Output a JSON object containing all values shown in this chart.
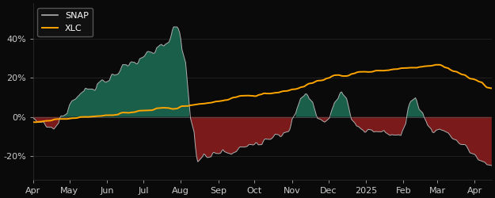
{
  "background_color": "#0a0a0a",
  "outer_background": "#ffffff",
  "snap_color": "#b0b0b0",
  "xlc_color": "#FFA500",
  "fill_positive_color": "#1a5f4a",
  "fill_negative_color": "#7a1a1a",
  "snap_linewidth": 0.7,
  "xlc_linewidth": 1.4,
  "legend_snap": "SNAP",
  "legend_xlc": "XLC",
  "yticks": [
    -0.2,
    0.0,
    0.2,
    0.4
  ],
  "ytick_labels": [
    "-20%",
    "0%",
    "20%",
    "40%"
  ],
  "xtick_labels": [
    "Apr",
    "May",
    "Jun",
    "Jul",
    "Aug",
    "Sep",
    "Oct",
    "Nov",
    "Dec",
    "2025",
    "Feb",
    "Mar",
    "Apr"
  ],
  "ylim": [
    -0.32,
    0.58
  ],
  "legend_facecolor": "#111111",
  "legend_edgecolor": "#555555",
  "legend_textcolor": "#ffffff",
  "tick_color": "#aaaaaa",
  "spine_color": "#333333",
  "label_color": "#cccccc"
}
